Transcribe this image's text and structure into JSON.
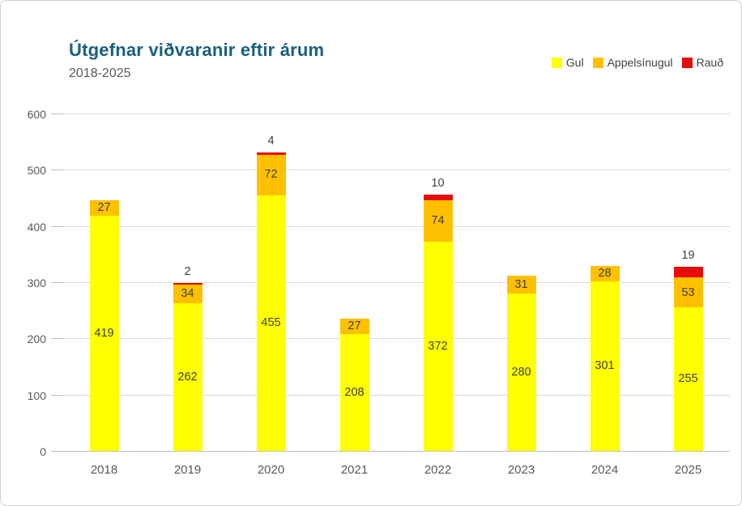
{
  "window": {
    "background": "#ffffff",
    "border_color": "#cfcfcf"
  },
  "chart": {
    "title": "Útgefnar viðvaranir eftir árum",
    "subtitle": "2018-2025",
    "title_color": "#19607f",
    "subtitle_color": "#595959"
  },
  "chart_data": {
    "type": "bar",
    "stacked": true,
    "title": "Útgefnar viðvaranir eftir árum",
    "subtitle": "2018-2025",
    "categories": [
      "2018",
      "2019",
      "2020",
      "2021",
      "2022",
      "2023",
      "2024",
      "2025"
    ],
    "series": [
      {
        "name": "Gul",
        "color": "#ffff00",
        "values": [
          419,
          262,
          455,
          208,
          372,
          280,
          301,
          255
        ]
      },
      {
        "name": "Appelsínugul",
        "color": "#ffc000",
        "values": [
          27,
          34,
          72,
          27,
          74,
          31,
          28,
          53
        ]
      },
      {
        "name": "Rauð",
        "color": "#e80c0c",
        "values": [
          0,
          2,
          4,
          0,
          10,
          0,
          0,
          19
        ]
      }
    ],
    "totals": [
      446,
      298,
      531,
      235,
      456,
      311,
      329,
      327
    ],
    "xlabel": "",
    "ylabel": "",
    "ylim": [
      0,
      600
    ],
    "yticks": [
      0,
      100,
      200,
      300,
      400,
      500,
      600
    ],
    "grid": true,
    "gridline_color": "#d9d9d9",
    "axis_line_color": "#bfbfbf",
    "tick_label_color": "#595959",
    "data_label_color": "#3f3f3f",
    "legend_position": "top-right",
    "label_rules": "Gul and Appelsínugul values labeled at center of segment; Rauð values labeled above bar top; zero values unlabeled"
  }
}
